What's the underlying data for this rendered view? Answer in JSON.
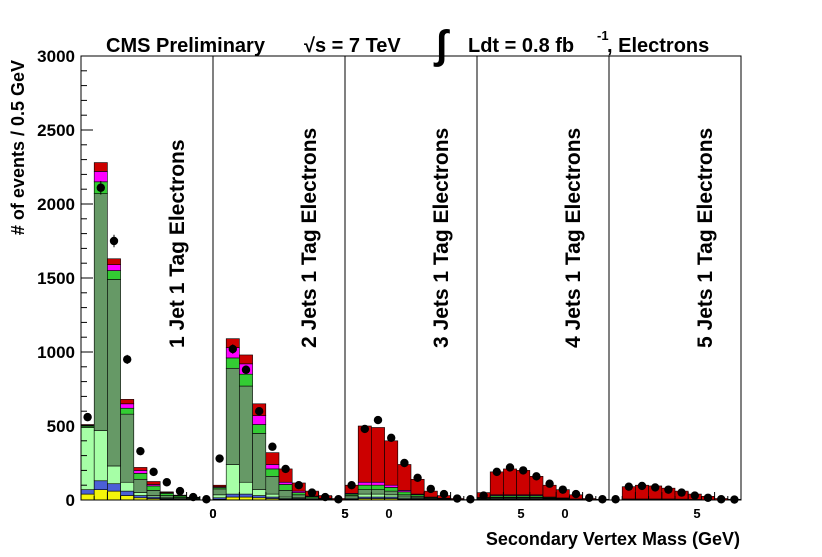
{
  "header": {
    "experiment": "CMS Preliminary",
    "energy_prefix": "√s = 7 TeV",
    "integral_sign": "∫",
    "lumi": "Ldt = 0.8 fb",
    "lumi_exp": "-1",
    "channel": ", Electrons"
  },
  "chart_data": {
    "type": "bar",
    "stacked": true,
    "ylabel": "# of events / 0.5 GeV",
    "xlabel": "Secondary Vertex Mass (GeV)",
    "ylim": [
      0,
      3000
    ],
    "yticks": [
      0,
      500,
      1000,
      1500,
      2000,
      2500,
      3000
    ],
    "panel_tick_labels": [
      [
        "",
        "",
        "",
        "0"
      ],
      [
        "0",
        "",
        "",
        "5"
      ],
      [
        "5",
        "0",
        "",
        ""
      ],
      [
        "",
        "5",
        "0",
        ""
      ],
      [
        "",
        "",
        "5",
        ""
      ]
    ],
    "bins_per_panel": 10,
    "panels": [
      {
        "label": "1 Jet  1 Tag Electrons",
        "colors": [
          "#f5f50a",
          "#4b5fd6",
          "#a6ffa6",
          "#669966",
          "#33cc33",
          "#ff00ff",
          "#cc0000"
        ],
        "stacks": [
          [
            40,
            30,
            420,
            0,
            10,
            5,
            5
          ],
          [
            70,
            60,
            340,
            1600,
            80,
            70,
            60
          ],
          [
            60,
            50,
            120,
            1260,
            60,
            40,
            40
          ],
          [
            30,
            30,
            60,
            460,
            40,
            30,
            30
          ],
          [
            15,
            15,
            20,
            90,
            40,
            20,
            20
          ],
          [
            10,
            10,
            10,
            35,
            30,
            10,
            20
          ],
          [
            5,
            5,
            5,
            15,
            15,
            5,
            5
          ],
          [
            3,
            3,
            3,
            8,
            10,
            3,
            3
          ],
          [
            2,
            2,
            2,
            4,
            5,
            2,
            2
          ],
          [
            0,
            0,
            0,
            0,
            0,
            0,
            0
          ]
        ],
        "data": [
          560,
          2110,
          1750,
          950,
          330,
          190,
          120,
          60,
          20,
          5
        ]
      },
      {
        "label": "2 Jets 1 Tag Electrons",
        "colors": [
          "#f5f50a",
          "#4b5fd6",
          "#a6ffa6",
          "#669966",
          "#33cc33",
          "#ff00ff",
          "#cc0000"
        ],
        "stacks": [
          [
            5,
            10,
            20,
            40,
            10,
            5,
            10
          ],
          [
            20,
            20,
            200,
            650,
            70,
            70,
            60
          ],
          [
            20,
            20,
            80,
            650,
            80,
            70,
            60
          ],
          [
            15,
            15,
            40,
            380,
            60,
            60,
            80
          ],
          [
            10,
            10,
            20,
            120,
            50,
            30,
            80
          ],
          [
            5,
            5,
            10,
            45,
            40,
            15,
            90
          ],
          [
            5,
            5,
            5,
            20,
            15,
            10,
            55
          ],
          [
            2,
            2,
            2,
            8,
            8,
            5,
            33
          ],
          [
            1,
            1,
            1,
            3,
            3,
            2,
            19
          ],
          [
            0,
            0,
            0,
            1,
            1,
            1,
            7
          ]
        ],
        "data": [
          280,
          1020,
          880,
          600,
          360,
          210,
          100,
          50,
          20,
          5
        ]
      },
      {
        "label": "3 Jets 1 Tag Electrons",
        "colors": [
          "#f5f50a",
          "#4b5fd6",
          "#a6ffa6",
          "#669966",
          "#33cc33",
          "#ff00ff",
          "#cc0000"
        ],
        "stacks": [
          [
            5,
            5,
            10,
            10,
            10,
            5,
            55
          ],
          [
            10,
            10,
            20,
            30,
            30,
            20,
            380
          ],
          [
            10,
            10,
            20,
            30,
            30,
            20,
            370
          ],
          [
            10,
            10,
            15,
            25,
            25,
            15,
            300
          ],
          [
            5,
            5,
            10,
            15,
            20,
            10,
            175
          ],
          [
            5,
            5,
            5,
            10,
            10,
            5,
            100
          ],
          [
            2,
            2,
            3,
            5,
            5,
            3,
            40
          ],
          [
            1,
            1,
            2,
            3,
            3,
            2,
            18
          ],
          [
            0,
            0,
            1,
            1,
            1,
            1,
            6
          ],
          [
            0,
            0,
            0,
            0,
            0,
            0,
            3
          ]
        ],
        "data": [
          100,
          480,
          540,
          420,
          250,
          150,
          75,
          40,
          10,
          5
        ]
      },
      {
        "label": "4 Jets 1 Tag Electrons",
        "colors": [
          "#f5f50a",
          "#4b5fd6",
          "#a6ffa6",
          "#669966",
          "#33cc33",
          "#ff00ff",
          "#cc0000"
        ],
        "stacks": [
          [
            2,
            2,
            3,
            3,
            5,
            2,
            33
          ],
          [
            5,
            5,
            5,
            5,
            10,
            5,
            155
          ],
          [
            5,
            5,
            5,
            5,
            10,
            5,
            175
          ],
          [
            5,
            5,
            5,
            5,
            10,
            5,
            165
          ],
          [
            5,
            5,
            5,
            5,
            10,
            5,
            125
          ],
          [
            3,
            3,
            3,
            3,
            5,
            3,
            80
          ],
          [
            2,
            2,
            2,
            2,
            4,
            2,
            56
          ],
          [
            1,
            1,
            1,
            1,
            2,
            1,
            28
          ],
          [
            0,
            0,
            1,
            1,
            1,
            1,
            6
          ],
          [
            0,
            0,
            0,
            0,
            1,
            0,
            4
          ]
        ],
        "data": [
          30,
          190,
          220,
          200,
          160,
          110,
          70,
          40,
          15,
          5
        ]
      },
      {
        "label": "5 Jets 1 Tag Electrons",
        "colors": [
          "#f5f50a",
          "#4b5fd6",
          "#a6ffa6",
          "#669966",
          "#33cc33",
          "#ff00ff",
          "#cc0000"
        ],
        "stacks": [
          [
            0,
            0,
            0,
            0,
            0,
            0,
            0
          ],
          [
            1,
            1,
            1,
            1,
            2,
            1,
            83
          ],
          [
            1,
            1,
            1,
            1,
            2,
            1,
            93
          ],
          [
            1,
            1,
            1,
            1,
            2,
            1,
            88
          ],
          [
            1,
            1,
            1,
            1,
            2,
            1,
            73
          ],
          [
            1,
            1,
            1,
            1,
            1,
            1,
            54
          ],
          [
            0,
            0,
            1,
            1,
            1,
            1,
            36
          ],
          [
            0,
            0,
            0,
            1,
            1,
            0,
            23
          ],
          [
            0,
            0,
            0,
            0,
            0,
            0,
            10
          ],
          [
            0,
            0,
            0,
            0,
            0,
            0,
            5
          ]
        ],
        "data": [
          5,
          90,
          95,
          85,
          70,
          50,
          30,
          15,
          5,
          3
        ]
      }
    ]
  }
}
